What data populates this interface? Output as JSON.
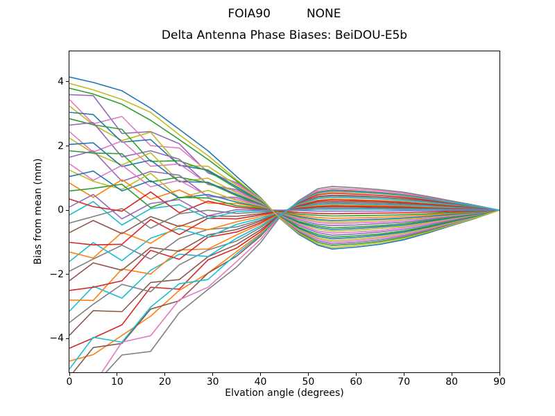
{
  "chart_data": {
    "type": "line",
    "suptitle_left": "FOIA90",
    "suptitle_right": "NONE",
    "title": "Delta Antenna Phase Biases: BeiDOU-E5b",
    "xlabel": "Elvation angle (degrees)",
    "ylabel": "Bias from mean (mm)",
    "xlim": [
      0,
      90
    ],
    "ylim": [
      -5.05,
      4.95
    ],
    "grid": false,
    "legend_position": "none",
    "x_ticks": [
      {
        "value": 0,
        "label": "0"
      },
      {
        "value": 10,
        "label": "10"
      },
      {
        "value": 20,
        "label": "20"
      },
      {
        "value": 30,
        "label": "30"
      },
      {
        "value": 40,
        "label": "40"
      },
      {
        "value": 50,
        "label": "50"
      },
      {
        "value": 60,
        "label": "60"
      },
      {
        "value": 70,
        "label": "70"
      },
      {
        "value": 80,
        "label": "80"
      },
      {
        "value": 90,
        "label": "90"
      }
    ],
    "y_ticks": [
      {
        "value": -4,
        "label": "−4"
      },
      {
        "value": -2,
        "label": "−2"
      },
      {
        "value": 0,
        "label": "0"
      },
      {
        "value": 2,
        "label": "2"
      },
      {
        "value": 4,
        "label": "4"
      }
    ],
    "x": [
      0,
      5,
      11,
      17,
      23,
      29,
      35,
      40,
      44,
      48,
      52,
      55,
      60,
      65,
      70,
      75,
      80,
      85,
      90
    ],
    "series": [
      {
        "name": "line-01",
        "color": "#1f77b4",
        "y": [
          4.15,
          3.98,
          3.72,
          3.18,
          2.52,
          1.85,
          1.05,
          0.39,
          -0.25,
          -0.75,
          -1.09,
          -1.21,
          -1.15,
          -1.06,
          -0.92,
          -0.71,
          -0.48,
          -0.25,
          0
        ]
      },
      {
        "name": "line-02",
        "color": "#ff7f0e",
        "y": [
          -4.7,
          -4.5,
          -3.9,
          -3.3,
          -2.5,
          -1.96,
          -1.29,
          -0.73,
          -0.15,
          0.25,
          0.52,
          0.58,
          0.55,
          0.51,
          0.44,
          0.34,
          0.23,
          0.12,
          0
        ]
      },
      {
        "name": "line-03",
        "color": "#2ca02c",
        "y": [
          3.8,
          3.62,
          3.3,
          2.8,
          2.2,
          1.58,
          0.91,
          0.36,
          -0.23,
          -0.69,
          -1.0,
          -1.1,
          -1.05,
          -0.97,
          -0.84,
          -0.65,
          -0.44,
          -0.23,
          0
        ]
      },
      {
        "name": "line-04",
        "color": "#d62728",
        "y": [
          -4.3,
          -3.98,
          -3.57,
          -2.4,
          -2.46,
          -1.55,
          -1.18,
          -0.67,
          -0.14,
          0.23,
          0.48,
          0.53,
          0.5,
          0.46,
          0.4,
          0.31,
          0.21,
          0.11,
          0
        ]
      },
      {
        "name": "line-05",
        "color": "#9467bd",
        "y": [
          3.6,
          3.57,
          2.39,
          2.45,
          2.07,
          1.16,
          0.86,
          0.34,
          -0.22,
          -0.66,
          -0.95,
          -1.05,
          -1.0,
          -0.92,
          -0.8,
          -0.62,
          -0.42,
          -0.22,
          0
        ]
      },
      {
        "name": "line-06",
        "color": "#8c564b",
        "y": [
          -3.9,
          -3.13,
          -3.16,
          -2.25,
          -2.16,
          -1.45,
          -1.07,
          -0.61,
          -0.13,
          0.2,
          0.43,
          0.47,
          0.45,
          0.41,
          0.36,
          0.28,
          0.19,
          0.1,
          0
        ]
      },
      {
        "name": "line-07",
        "color": "#e377c2",
        "y": [
          3.45,
          2.69,
          2.92,
          2.01,
          1.94,
          1.2,
          0.83,
          0.33,
          -0.2,
          -0.62,
          -0.9,
          -1.0,
          -0.95,
          -0.87,
          -0.76,
          -0.59,
          -0.4,
          -0.21,
          0
        ]
      },
      {
        "name": "line-08",
        "color": "#7f7f7f",
        "y": [
          -3.5,
          -2.93,
          -2.31,
          -2.54,
          -1.7,
          -1.24,
          -0.96,
          -0.54,
          -0.11,
          0.2,
          0.4,
          0.44,
          0.42,
          0.39,
          0.34,
          0.26,
          0.18,
          0.09,
          0
        ]
      },
      {
        "name": "line-09",
        "color": "#bcbd22",
        "y": [
          3.25,
          2.66,
          2.17,
          2.43,
          1.39,
          1.37,
          0.78,
          0.31,
          -0.19,
          -0.59,
          -0.86,
          -0.95,
          -0.9,
          -0.83,
          -0.72,
          -0.56,
          -0.38,
          -0.2,
          0
        ]
      },
      {
        "name": "line-10",
        "color": "#17becf",
        "y": [
          -3.15,
          -2.37,
          -2.74,
          -1.87,
          -1.37,
          -1.44,
          -0.87,
          -0.49,
          -0.1,
          0.17,
          0.36,
          0.4,
          0.38,
          0.35,
          0.3,
          0.24,
          0.16,
          0.08,
          0
        ]
      },
      {
        "name": "line-11",
        "color": "#1f77b4",
        "y": [
          3.05,
          2.98,
          2.12,
          2.2,
          1.4,
          1.25,
          0.73,
          0.29,
          -0.18,
          -0.56,
          -0.81,
          -0.89,
          -0.85,
          -0.78,
          -0.68,
          -0.53,
          -0.36,
          -0.19,
          0
        ]
      },
      {
        "name": "line-12",
        "color": "#ff7f0e",
        "y": [
          -2.8,
          -2.81,
          -1.83,
          -1.99,
          -1.24,
          -1.21,
          -0.77,
          -0.43,
          -0.09,
          0.15,
          0.31,
          0.35,
          0.33,
          0.3,
          0.26,
          0.2,
          0.14,
          0.07,
          0
        ]
      },
      {
        "name": "line-13",
        "color": "#2ca02c",
        "y": [
          2.85,
          2.66,
          2.52,
          1.52,
          1.54,
          1.22,
          0.68,
          0.27,
          -0.17,
          -0.53,
          -0.76,
          -0.84,
          -0.8,
          -0.74,
          -0.64,
          -0.5,
          -0.34,
          -0.18,
          0
        ]
      },
      {
        "name": "line-14",
        "color": "#d62728",
        "y": [
          -2.5,
          -2.4,
          -2.2,
          -1.25,
          -1.53,
          -0.84,
          -0.68,
          -0.39,
          -0.08,
          0.14,
          0.29,
          0.32,
          0.3,
          0.28,
          0.24,
          0.19,
          0.13,
          0.07,
          0
        ]
      },
      {
        "name": "line-15",
        "color": "#9467bd",
        "y": [
          2.65,
          2.73,
          1.66,
          1.85,
          1.59,
          0.8,
          0.64,
          0.25,
          -0.16,
          -0.48,
          -0.7,
          -0.78,
          -0.74,
          -0.68,
          -0.59,
          -0.46,
          -0.31,
          -0.16,
          0
        ]
      },
      {
        "name": "line-16",
        "color": "#8c564b",
        "y": [
          -2.2,
          -1.64,
          -1.87,
          -1.16,
          -1.28,
          -0.77,
          -0.6,
          -0.34,
          -0.07,
          0.12,
          0.25,
          0.27,
          0.26,
          0.24,
          0.21,
          0.16,
          0.11,
          0.06,
          0
        ]
      },
      {
        "name": "line-17",
        "color": "#e377c2",
        "y": [
          2.45,
          1.81,
          2.16,
          1.37,
          1.44,
          0.82,
          0.59,
          0.23,
          -0.14,
          -0.44,
          -0.65,
          -0.71,
          -0.68,
          -0.63,
          -0.54,
          -0.42,
          -0.29,
          -0.15,
          0
        ]
      },
      {
        "name": "line-18",
        "color": "#7f7f7f",
        "y": [
          -1.9,
          -1.52,
          -1.09,
          -1.52,
          -0.88,
          -0.6,
          -0.52,
          -0.3,
          -0.06,
          0.1,
          0.21,
          0.23,
          0.22,
          0.2,
          0.18,
          0.14,
          0.09,
          0.05,
          0
        ]
      },
      {
        "name": "line-19",
        "color": "#bcbd22",
        "y": [
          2.25,
          1.78,
          1.41,
          1.79,
          0.89,
          1.0,
          0.54,
          0.21,
          -0.13,
          -0.41,
          -0.59,
          -0.65,
          -0.62,
          -0.57,
          -0.5,
          -0.38,
          -0.26,
          -0.14,
          0
        ]
      },
      {
        "name": "line-20",
        "color": "#17becf",
        "y": [
          -1.6,
          -1.01,
          -1.57,
          -0.87,
          -0.57,
          -0.84,
          -0.44,
          -0.25,
          -0.05,
          0.09,
          0.18,
          0.2,
          0.19,
          0.17,
          0.15,
          0.12,
          0.08,
          0.04,
          0
        ]
      },
      {
        "name": "line-21",
        "color": "#1f77b4",
        "y": [
          2.05,
          2.1,
          1.36,
          1.56,
          0.89,
          0.87,
          0.49,
          0.19,
          -0.12,
          -0.38,
          -0.54,
          -0.6,
          -0.57,
          -0.52,
          -0.46,
          -0.35,
          -0.24,
          -0.13,
          0
        ]
      },
      {
        "name": "line-22",
        "color": "#ff7f0e",
        "y": [
          -1.3,
          -1.49,
          -0.69,
          -1.03,
          -0.47,
          -0.61,
          -0.36,
          -0.2,
          -0.04,
          0.07,
          0.14,
          0.16,
          0.15,
          0.14,
          0.12,
          0.09,
          0.06,
          0.03,
          0
        ]
      },
      {
        "name": "line-23",
        "color": "#2ca02c",
        "y": [
          1.85,
          1.78,
          1.76,
          0.88,
          1.03,
          0.85,
          0.45,
          0.17,
          -0.11,
          -0.35,
          -0.49,
          -0.55,
          -0.52,
          -0.48,
          -0.42,
          -0.32,
          -0.22,
          -0.11,
          0
        ]
      },
      {
        "name": "line-24",
        "color": "#d62728",
        "y": [
          -1.0,
          -1.08,
          -1.06,
          -0.29,
          -0.76,
          -0.25,
          -0.27,
          -0.15,
          -0.03,
          0.06,
          0.11,
          0.13,
          0.12,
          0.11,
          0.1,
          0.07,
          0.05,
          0.03,
          0
        ]
      },
      {
        "name": "line-25",
        "color": "#9467bd",
        "y": [
          1.65,
          1.85,
          0.9,
          1.21,
          1.09,
          0.42,
          0.4,
          0.16,
          -0.1,
          -0.3,
          -0.44,
          -0.48,
          -0.46,
          -0.42,
          -0.37,
          -0.29,
          -0.19,
          -0.1,
          0
        ]
      },
      {
        "name": "line-26",
        "color": "#8c564b",
        "y": [
          -0.7,
          -0.32,
          -0.73,
          -0.2,
          -0.51,
          -0.18,
          -0.19,
          -0.11,
          -0.02,
          0.04,
          0.09,
          0.09,
          0.09,
          0.08,
          0.07,
          0.06,
          0.04,
          0.02,
          0
        ]
      },
      {
        "name": "line-27",
        "color": "#e377c2",
        "y": [
          1.45,
          0.93,
          1.4,
          0.73,
          0.93,
          0.44,
          0.35,
          0.14,
          -0.08,
          -0.26,
          -0.38,
          -0.42,
          -0.4,
          -0.37,
          -0.32,
          -0.25,
          -0.17,
          -0.09,
          0
        ]
      },
      {
        "name": "line-28",
        "color": "#7f7f7f",
        "y": [
          -0.4,
          -0.2,
          0.05,
          -0.56,
          -0.11,
          0.0,
          -0.1,
          -0.06,
          -0.01,
          0.02,
          0.05,
          0.05,
          0.05,
          0.05,
          0.04,
          0.03,
          0.02,
          0.01,
          0
        ]
      },
      {
        "name": "line-29",
        "color": "#bcbd22",
        "y": [
          1.25,
          0.9,
          0.65,
          1.15,
          0.38,
          0.62,
          0.3,
          0.12,
          -0.07,
          -0.23,
          -0.33,
          -0.37,
          -0.35,
          -0.32,
          -0.28,
          -0.22,
          -0.15,
          -0.08,
          0
        ]
      },
      {
        "name": "line-30",
        "color": "#17becf",
        "y": [
          -0.15,
          0.27,
          -0.46,
          0.05,
          0.17,
          -0.26,
          -0.04,
          -0.02,
          0.0,
          0.01,
          0.03,
          0.03,
          0.03,
          0.03,
          0.02,
          0.02,
          0.01,
          0.01,
          0
        ]
      },
      {
        "name": "line-31",
        "color": "#1f77b4",
        "y": [
          1.05,
          1.22,
          0.6,
          0.92,
          0.38,
          0.49,
          0.25,
          0.1,
          -0.06,
          -0.2,
          -0.29,
          -0.32,
          -0.3,
          -0.28,
          -0.24,
          -0.19,
          -0.13,
          -0.07,
          0
        ]
      },
      {
        "name": "line-32",
        "color": "#ff7f0e",
        "y": [
          0.85,
          0.4,
          0.95,
          0.34,
          0.63,
          0.22,
          0.21,
          0.08,
          -0.05,
          -0.16,
          -0.23,
          -0.25,
          -0.24,
          -0.22,
          -0.19,
          -0.15,
          -0.1,
          -0.05,
          0
        ]
      },
      {
        "name": "line-33",
        "color": "#2ca02c",
        "y": [
          0.6,
          0.68,
          0.81,
          0.08,
          0.4,
          0.38,
          0.14,
          0.06,
          -0.04,
          -0.12,
          -0.16,
          -0.18,
          -0.17,
          -0.16,
          -0.14,
          -0.11,
          -0.07,
          -0.04,
          0
        ]
      },
      {
        "name": "line-34",
        "color": "#d62728",
        "y": [
          0.35,
          0.11,
          -0.03,
          0.57,
          -0.08,
          0.28,
          0.09,
          0.03,
          -0.02,
          -0.07,
          -0.1,
          -0.11,
          -0.1,
          -0.09,
          -0.08,
          -0.06,
          -0.04,
          -0.02,
          0
        ]
      },
      {
        "name": "line-35",
        "color": "#9467bd",
        "y": [
          0.1,
          0.49,
          -0.27,
          0.21,
          0.33,
          -0.17,
          0.02,
          0.01,
          0.0,
          -0.01,
          -0.03,
          -0.03,
          -0.03,
          -0.03,
          -0.02,
          -0.02,
          -0.01,
          -0.01,
          0
        ]
      },
      {
        "name": "line-36",
        "color": "#8c564b",
        "y": [
          -5.2,
          -4.28,
          -4.15,
          -3.08,
          -2.82,
          -1.96,
          -1.43,
          -0.81,
          -0.17,
          0.27,
          0.57,
          0.63,
          0.6,
          0.55,
          0.48,
          0.37,
          0.25,
          0.13,
          0
        ]
      },
      {
        "name": "line-37",
        "color": "#e377c2",
        "y": [
          -5.8,
          -5.45,
          -4.11,
          -3.91,
          -2.79,
          -2.4,
          -1.6,
          -0.91,
          -0.2,
          0.29,
          0.62,
          0.68,
          0.65,
          0.6,
          0.52,
          0.4,
          0.27,
          0.14,
          0
        ]
      },
      {
        "name": "line-38",
        "color": "#7f7f7f",
        "y": [
          -6.4,
          -5.48,
          -4.51,
          -4.4,
          -3.19,
          -2.47,
          -1.77,
          -1.01,
          -0.23,
          0.3,
          0.67,
          0.74,
          0.7,
          0.64,
          0.56,
          0.43,
          0.29,
          0.15,
          0
        ]
      },
      {
        "name": "line-39",
        "color": "#bcbd22",
        "y": [
          3.95,
          3.75,
          3.45,
          3.05,
          2.35,
          1.7,
          0.95,
          0.37,
          -0.24,
          -0.72,
          -1.05,
          -1.16,
          -1.1,
          -1.01,
          -0.88,
          -0.68,
          -0.46,
          -0.24,
          0
        ]
      },
      {
        "name": "line-40",
        "color": "#17becf",
        "y": [
          -4.95,
          -3.96,
          -4.11,
          -3.02,
          -2.29,
          -2.16,
          -1.36,
          -0.77,
          -0.17,
          0.26,
          0.54,
          0.6,
          0.57,
          0.52,
          0.46,
          0.35,
          0.24,
          0.13,
          0
        ]
      }
    ]
  }
}
